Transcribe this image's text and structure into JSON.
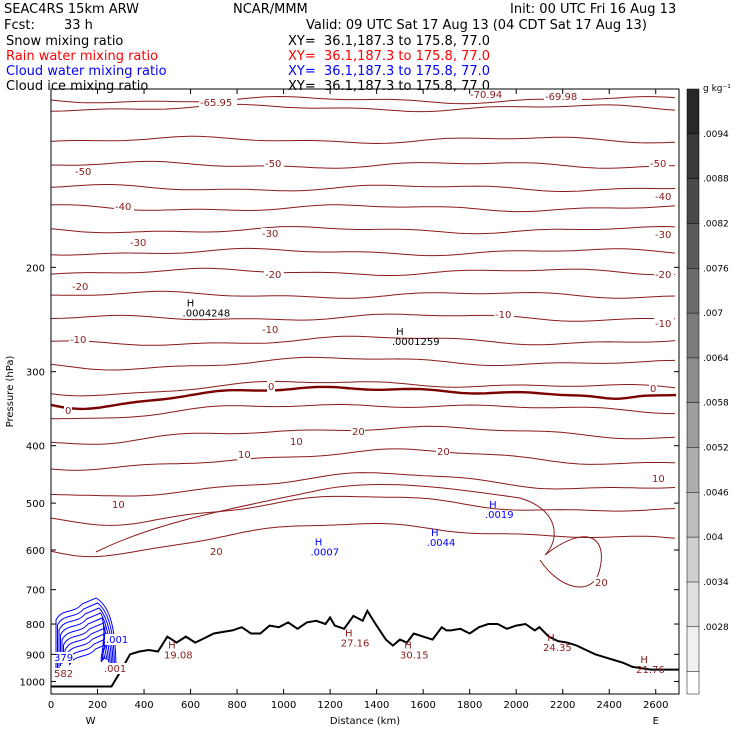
{
  "header": {
    "model": "SEAC4RS 15km ARW",
    "center": "NCAR/MMM",
    "init": "Init: 00 UTC Fri 16 Aug 13",
    "fcst_label": "Fcst:",
    "fcst_value": "33 h",
    "valid": "Valid: 09 UTC Sat 17 Aug 13 (04 CDT Sat 17 Aug 13)"
  },
  "fields": [
    {
      "name": "Snow mixing ratio",
      "xy": "XY=  36.1,187.3 to 175.8, 77.0",
      "color": "#000000"
    },
    {
      "name": "Rain water mixing ratio",
      "xy": "XY=  36.1,187.3 to 175.8, 77.0",
      "color": "#ff0000"
    },
    {
      "name": "Cloud water mixing ratio",
      "xy": "XY=  36.1,187.3 to 175.8, 77.0",
      "color": "#0000ff"
    },
    {
      "name": "Cloud ice mixing ratio",
      "xy": "XY=  36.1,187.3 to 175.8, 77.0",
      "color": "#000000"
    }
  ],
  "colors": {
    "temperature": "#8b1a1a",
    "zero_isotherm": "#7a0000",
    "terrain": "#000000",
    "cloud_water": "#0000ff"
  },
  "chart_data": {
    "type": "cross-section",
    "xlabel": "Distance (km)",
    "ylabel": "Pressure (hPa)",
    "xlim": [
      0,
      2700
    ],
    "ylim": [
      1050,
      100
    ],
    "y_scale": "log",
    "x_ticks": [
      "0",
      "200",
      "400",
      "600",
      "800",
      "1000",
      "1200",
      "1400",
      "1600",
      "1800",
      "2000",
      "2200",
      "2400",
      "2600"
    ],
    "y_ticks": [
      "200",
      "300",
      "400",
      "500",
      "600",
      "700",
      "800",
      "900",
      "1000"
    ],
    "x_ends": {
      "left": "W",
      "right": "E"
    },
    "colorbar": {
      "unit": "g kg⁻¹",
      "ticks": [
        ".0094",
        ".0088",
        ".0082",
        ".0076",
        ".007",
        ".0064",
        ".0058",
        ".0052",
        ".0046",
        ".004",
        ".0034",
        ".0028"
      ]
    },
    "isotherm_labels": [
      "-65.95",
      "-70.94",
      "-69.98",
      "-50",
      "-50",
      "-50",
      "-40",
      "-40",
      "-30",
      "-30",
      "-30",
      "-20",
      "-20",
      "-20",
      "-10",
      "-10",
      "-10",
      "-10",
      "0",
      "0",
      "0",
      "10",
      "10",
      "10",
      "10",
      "20",
      "20",
      "20",
      "20"
    ],
    "extrema": [
      {
        "label": "H",
        "value": ".0004248",
        "x": 600,
        "p": 233,
        "color": "#000000"
      },
      {
        "label": "H",
        "value": ".0001259",
        "x": 1500,
        "p": 260,
        "color": "#000000"
      },
      {
        "label": "H",
        "value": ".0019",
        "x": 1900,
        "p": 510,
        "color": "#0000ff"
      },
      {
        "label": "H",
        "value": ".0044",
        "x": 1650,
        "p": 568,
        "color": "#0000ff"
      },
      {
        "label": "H",
        "value": ".0007",
        "x": 1150,
        "p": 590,
        "color": "#0000ff"
      },
      {
        "label": "H",
        "value": "19.08",
        "x": 520,
        "p": 880,
        "color": "#8b1a1a"
      },
      {
        "label": "H",
        "value": "27.16",
        "x": 1280,
        "p": 840,
        "color": "#8b1a1a"
      },
      {
        "label": "H",
        "value": "30.15",
        "x": 1535,
        "p": 880,
        "color": "#8b1a1a"
      },
      {
        "label": "H",
        "value": "24.35",
        "x": 2150,
        "p": 855,
        "color": "#8b1a1a"
      },
      {
        "label": "H",
        "value": "21.76",
        "x": 2550,
        "p": 930,
        "color": "#8b1a1a"
      }
    ],
    "edge_labels": [
      ".001",
      ".001",
      "379",
      "582"
    ],
    "terrain": {
      "x": [
        0,
        260,
        300,
        340,
        380,
        420,
        460,
        500,
        540,
        580,
        620,
        660,
        700,
        740,
        780,
        820,
        860,
        900,
        940,
        980,
        1020,
        1060,
        1100,
        1140,
        1180,
        1200,
        1220,
        1260,
        1300,
        1340,
        1360,
        1400,
        1440,
        1470,
        1500,
        1530,
        1560,
        1600,
        1640,
        1680,
        1700,
        1720,
        1760,
        1800,
        1840,
        1880,
        1920,
        1960,
        2000,
        2040,
        2080,
        2100,
        2140,
        2180,
        2220,
        2260,
        2300,
        2340,
        2380,
        2420,
        2460,
        2500,
        2540,
        2580,
        2620,
        2660,
        2700
      ],
      "p": [
        1020,
        1020,
        960,
        900,
        890,
        885,
        890,
        840,
        860,
        840,
        860,
        845,
        830,
        825,
        820,
        810,
        830,
        830,
        805,
        810,
        795,
        815,
        795,
        790,
        800,
        780,
        805,
        815,
        775,
        790,
        760,
        805,
        850,
        870,
        850,
        860,
        830,
        840,
        850,
        810,
        820,
        820,
        815,
        830,
        810,
        800,
        800,
        815,
        805,
        800,
        820,
        810,
        840,
        855,
        860,
        870,
        885,
        900,
        910,
        920,
        930,
        945,
        950,
        955,
        955,
        955,
        955
      ]
    }
  }
}
